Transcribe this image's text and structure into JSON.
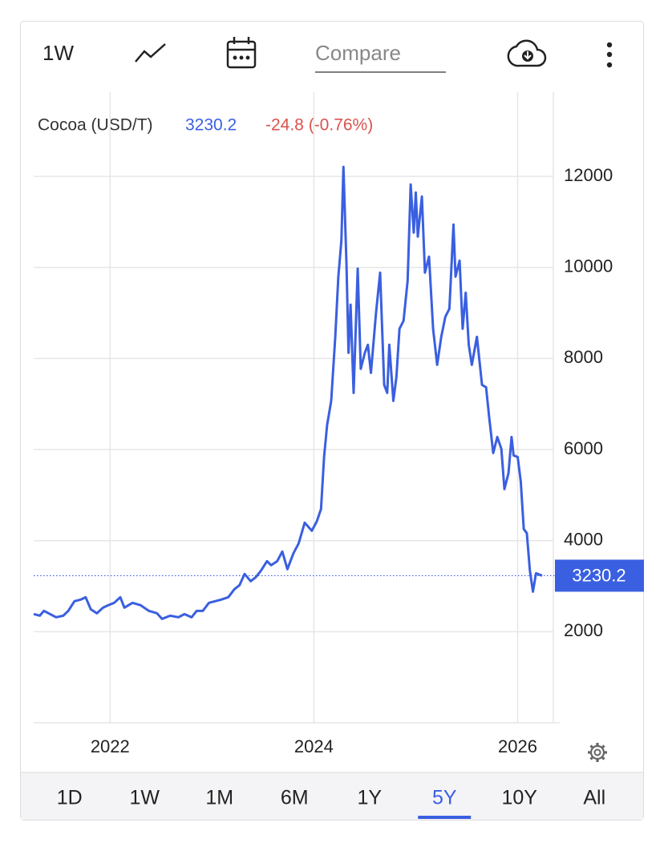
{
  "toolbar": {
    "interval": "1W",
    "compare": "Compare"
  },
  "chart_data": {
    "type": "line",
    "legend": {
      "name": "Cocoa (USD/T)",
      "change": "-24.8 (-0.76%)"
    },
    "x": [
      2021.25,
      2021.31,
      2021.35,
      2021.41,
      2021.47,
      2021.54,
      2021.59,
      2021.65,
      2021.71,
      2021.76,
      2021.81,
      2021.87,
      2021.93,
      2021.98,
      2022.04,
      2022.1,
      2022.14,
      2022.22,
      2022.3,
      2022.38,
      2022.46,
      2022.51,
      2022.59,
      2022.67,
      2022.73,
      2022.8,
      2022.85,
      2022.91,
      2022.97,
      2023.03,
      2023.09,
      2023.16,
      2023.22,
      2023.27,
      2023.32,
      2023.38,
      2023.43,
      2023.48,
      2023.54,
      2023.58,
      2023.64,
      2023.69,
      2023.74,
      2023.8,
      2023.85,
      2023.91,
      2023.98,
      2024.03,
      2024.07,
      2024.1,
      2024.13,
      2024.17,
      2024.21,
      2024.24,
      2024.27,
      2024.29,
      2024.32,
      2024.34,
      2024.36,
      2024.39,
      2024.43,
      2024.46,
      2024.5,
      2024.53,
      2024.56,
      2024.61,
      2024.65,
      2024.69,
      2024.72,
      2024.74,
      2024.78,
      2024.81,
      2024.84,
      2024.88,
      2024.92,
      2024.95,
      2024.98,
      2025.0,
      2025.02,
      2025.06,
      2025.09,
      2025.13,
      2025.17,
      2025.21,
      2025.25,
      2025.29,
      2025.33,
      2025.37,
      2025.39,
      2025.43,
      2025.46,
      2025.49,
      2025.52,
      2025.55,
      2025.6,
      2025.65,
      2025.69,
      2025.72,
      2025.76,
      2025.8,
      2025.84,
      2025.87,
      2025.91,
      2025.94,
      2025.96,
      2026.0,
      2026.03,
      2026.06,
      2026.09,
      2026.12,
      2026.15,
      2026.18,
      2026.24
    ],
    "series": [
      {
        "name": "Cocoa",
        "color": "#3a5fe0",
        "values": [
          2387,
          2352,
          2458,
          2387,
          2317,
          2352,
          2458,
          2669,
          2704,
          2757,
          2493,
          2405,
          2528,
          2581,
          2634,
          2757,
          2528,
          2634,
          2581,
          2458,
          2405,
          2282,
          2352,
          2317,
          2387,
          2317,
          2458,
          2458,
          2634,
          2669,
          2704,
          2757,
          2933,
          3021,
          3268,
          3109,
          3197,
          3338,
          3549,
          3461,
          3549,
          3761,
          3373,
          3725,
          3937,
          4394,
          4218,
          4430,
          4694,
          5838,
          6542,
          7070,
          8479,
          9799,
          10592,
          12208,
          10061,
          8125,
          9181,
          7245,
          9973,
          7773,
          8125,
          8301,
          7685,
          9005,
          9885,
          7421,
          7245,
          8301,
          7069,
          7597,
          8653,
          8829,
          9709,
          11821,
          10765,
          11645,
          10677,
          11557,
          9885,
          10237,
          8653,
          7861,
          8477,
          8917,
          9093,
          10941,
          9797,
          10149,
          8653,
          9445,
          8301,
          7861,
          8477,
          7421,
          7368,
          6717,
          5925,
          6277,
          6013,
          5133,
          5485,
          6277,
          5872,
          5837,
          5309,
          4253,
          4165,
          3338,
          2880,
          3285,
          3230.2
        ]
      }
    ],
    "xlim": [
      2021.25,
      2026.35
    ],
    "xticks": [
      2022,
      2024,
      2026
    ],
    "ylim": [
      0,
      13850
    ],
    "yticks": [
      2000,
      4000,
      6000,
      8000,
      10000,
      12000
    ],
    "grid": true,
    "change_color": "#d9534f"
  },
  "ranges": {
    "options": [
      "1D",
      "1W",
      "1M",
      "6M",
      "1Y",
      "5Y",
      "10Y",
      "All"
    ],
    "active": "5Y"
  }
}
